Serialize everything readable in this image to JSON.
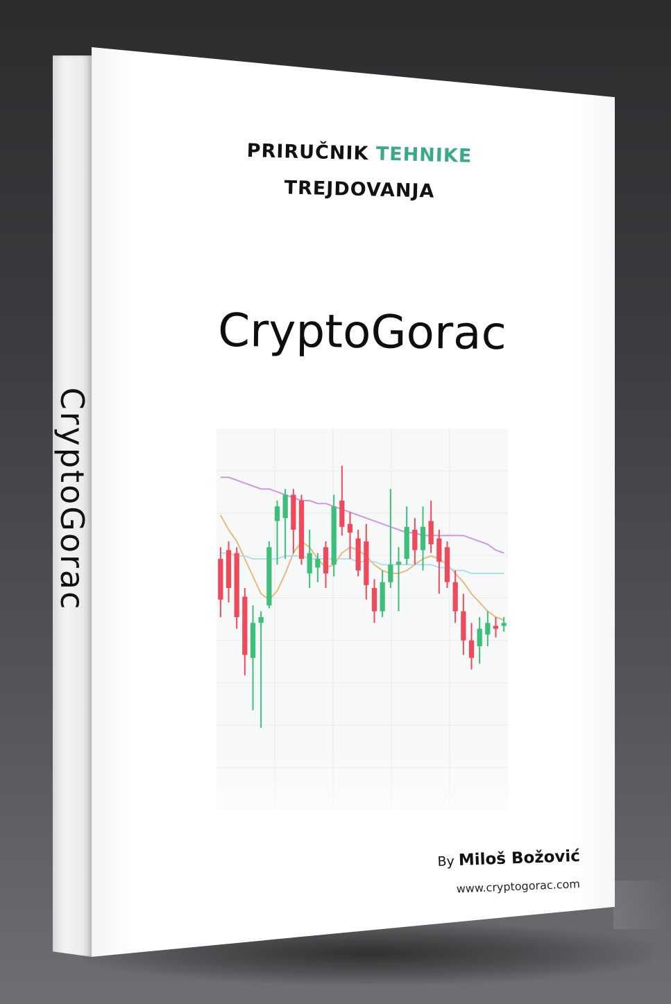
{
  "cover": {
    "subtitle_line1_part1": "PRIRUČNIK ",
    "subtitle_line1_accent": "TEHNIKE",
    "subtitle_line2": "TREJDOVANJA",
    "title": "CryptoGorac",
    "author_prefix": "By ",
    "author_name": "Miloš Božović",
    "website": "www.cryptogorac.com",
    "accent_color": "#3aa889"
  },
  "spine": {
    "title": "CryptoGorac"
  },
  "chart_data": {
    "type": "candlestick",
    "up_color": "#3cbf7a",
    "down_color": "#ee4a5c",
    "ylim": [
      0,
      100
    ],
    "candles": [
      {
        "o": 60,
        "c": 46,
        "h": 64,
        "l": 40
      },
      {
        "o": 63,
        "c": 50,
        "h": 66,
        "l": 45
      },
      {
        "o": 62,
        "c": 40,
        "h": 64,
        "l": 36
      },
      {
        "o": 47,
        "c": 27,
        "h": 50,
        "l": 20
      },
      {
        "o": 26,
        "c": 38,
        "h": 44,
        "l": 8
      },
      {
        "o": 38,
        "c": 40,
        "h": 42,
        "l": 2
      },
      {
        "o": 44,
        "c": 64,
        "h": 66,
        "l": 43
      },
      {
        "o": 73,
        "c": 78,
        "h": 80,
        "l": 58
      },
      {
        "o": 74,
        "c": 82,
        "h": 84,
        "l": 60
      },
      {
        "o": 82,
        "c": 70,
        "h": 84,
        "l": 62
      },
      {
        "o": 80,
        "c": 60,
        "h": 82,
        "l": 58
      },
      {
        "o": 55,
        "c": 62,
        "h": 70,
        "l": 50
      },
      {
        "o": 57,
        "c": 60,
        "h": 62,
        "l": 52
      },
      {
        "o": 64,
        "c": 55,
        "h": 66,
        "l": 50
      },
      {
        "o": 58,
        "c": 78,
        "h": 82,
        "l": 54
      },
      {
        "o": 80,
        "c": 71,
        "h": 92,
        "l": 68
      },
      {
        "o": 72,
        "c": 69,
        "h": 76,
        "l": 60
      },
      {
        "o": 67,
        "c": 56,
        "h": 70,
        "l": 54
      },
      {
        "o": 66,
        "c": 51,
        "h": 72,
        "l": 46
      },
      {
        "o": 50,
        "c": 42,
        "h": 53,
        "l": 38
      },
      {
        "o": 42,
        "c": 52,
        "h": 56,
        "l": 40
      },
      {
        "o": 52,
        "c": 58,
        "h": 84,
        "l": 50
      },
      {
        "o": 58,
        "c": 59,
        "h": 64,
        "l": 42
      },
      {
        "o": 60,
        "c": 71,
        "h": 78,
        "l": 58
      },
      {
        "o": 70,
        "c": 63,
        "h": 74,
        "l": 58
      },
      {
        "o": 63,
        "c": 71,
        "h": 78,
        "l": 56
      },
      {
        "o": 73,
        "c": 65,
        "h": 80,
        "l": 62
      },
      {
        "o": 67,
        "c": 59,
        "h": 70,
        "l": 48
      },
      {
        "o": 64,
        "c": 52,
        "h": 66,
        "l": 50
      },
      {
        "o": 52,
        "c": 42,
        "h": 56,
        "l": 38
      },
      {
        "o": 42,
        "c": 32,
        "h": 48,
        "l": 27
      },
      {
        "o": 32,
        "c": 26,
        "h": 38,
        "l": 22
      },
      {
        "o": 30,
        "c": 36,
        "h": 40,
        "l": 24
      },
      {
        "o": 34,
        "c": 38,
        "h": 42,
        "l": 30
      },
      {
        "o": 37,
        "c": 36,
        "h": 40,
        "l": 33
      },
      {
        "o": 37,
        "c": 38,
        "h": 40,
        "l": 35
      }
    ],
    "moving_averages": [
      {
        "color": "#c98de0",
        "values": [
          88,
          88,
          87,
          86,
          85,
          84,
          84,
          83,
          82,
          81,
          80,
          80,
          79,
          79,
          78,
          77,
          76,
          75,
          74,
          73,
          72,
          71,
          70,
          69,
          69,
          68,
          68,
          68,
          68,
          68,
          68,
          67,
          66,
          65,
          63,
          62
        ]
      },
      {
        "color": "#e8b070",
        "values": [
          75,
          70,
          66,
          60,
          54,
          48,
          46,
          49,
          55,
          62,
          66,
          64,
          60,
          57,
          58,
          62,
          64,
          63,
          61,
          58,
          56,
          55,
          55,
          56,
          58,
          60,
          61,
          60,
          58,
          55,
          52,
          48,
          45,
          42,
          40,
          39
        ]
      },
      {
        "color": "#a8dde8",
        "values": [
          62,
          62,
          61,
          61,
          60,
          60,
          60,
          60,
          61,
          61,
          61,
          60,
          60,
          60,
          60,
          60,
          60,
          59,
          59,
          59,
          58,
          58,
          58,
          58,
          58,
          58,
          58,
          57,
          57,
          56,
          56,
          55,
          55,
          55,
          55,
          55
        ]
      }
    ]
  }
}
